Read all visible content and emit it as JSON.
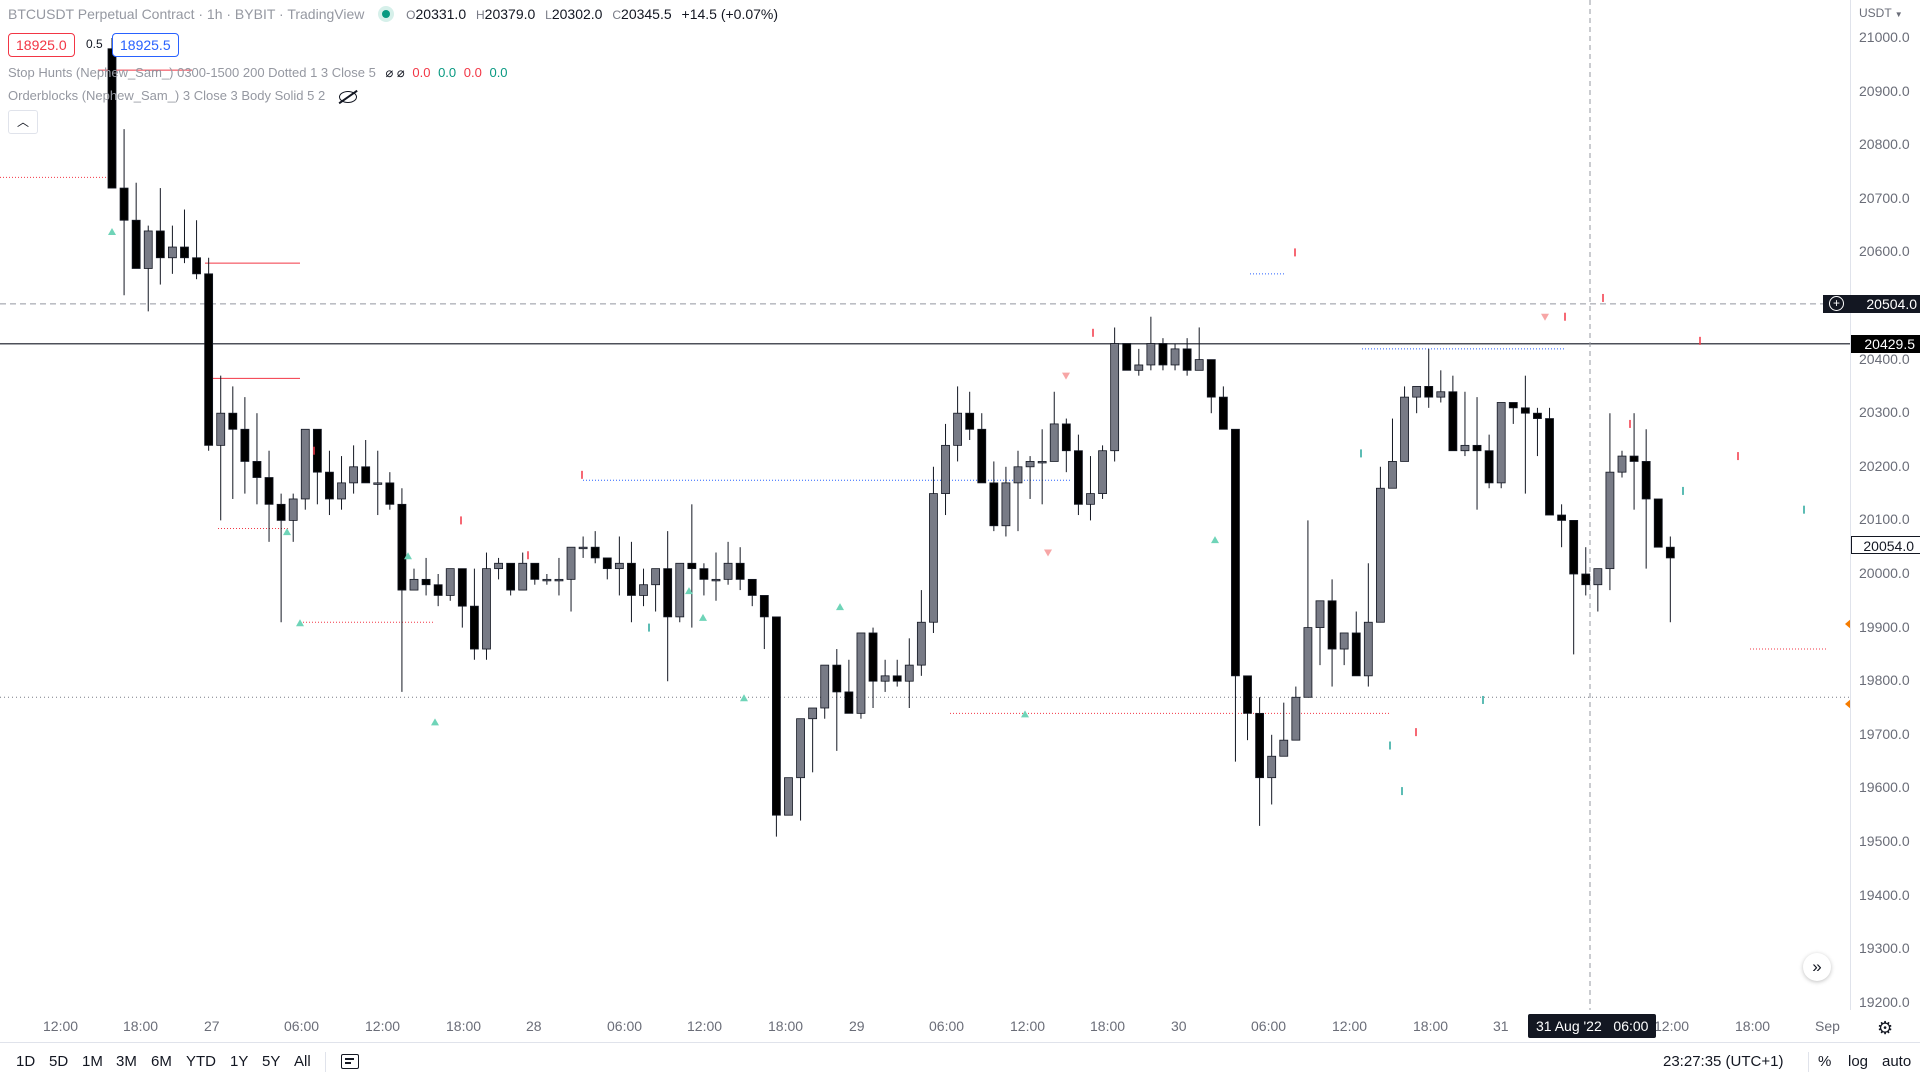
{
  "legend": {
    "symbol_title": "BTCUSDT Perpetual Contract · 1h · BYBIT · TradingView",
    "open_label": "O",
    "open": "20331.0",
    "high_label": "H",
    "high": "20379.0",
    "low_label": "L",
    "low": "20302.0",
    "close_label": "C",
    "close": "20345.5",
    "change": "+14.5 (+0.07%)",
    "sell_price": "18925.0",
    "spread": "0.5",
    "buy_price": "18925.5",
    "indicator1": "Stop Hunts (Nephew_Sam_) 0300-1500 200 Dotted 1 3 Close 5",
    "indicator1_values": [
      "0.0",
      "0.0",
      "0.0",
      "0.0"
    ],
    "indicator2": "Orderblocks (Nephew_Sam_) 3 Close 3 Body Solid 5 2",
    "collapse_icon": "chevron-up-icon",
    "hidden_icon": "eye-crossed-icon",
    "null_icon": "null-set-icon"
  },
  "price_axis": {
    "currency": "USDT",
    "ticks": [
      "21000.0",
      "20900.0",
      "20800.0",
      "20700.0",
      "20600.0",
      "20500.0",
      "20400.0",
      "20300.0",
      "20200.0",
      "20100.0",
      "20000.0",
      "19900.0",
      "19800.0",
      "19700.0",
      "19600.0",
      "19500.0",
      "19400.0",
      "19300.0",
      "19200.0"
    ],
    "alert_price": "20504.0",
    "last_price": "20429.5",
    "crosshair_price": "20054.0"
  },
  "time_axis": {
    "ticks": [
      "12:00",
      "18:00",
      "27",
      "06:00",
      "12:00",
      "18:00",
      "28",
      "06:00",
      "12:00",
      "18:00",
      "29",
      "06:00",
      "12:00",
      "18:00",
      "30",
      "06:00",
      "12:00",
      "18:00",
      "31",
      "12:00",
      "18:00",
      "Sep"
    ],
    "crosshair_date": "31 Aug '22",
    "crosshair_time": "06:00"
  },
  "bottom_bar": {
    "ranges": [
      "1D",
      "5D",
      "1M",
      "3M",
      "6M",
      "YTD",
      "1Y",
      "5Y",
      "All"
    ],
    "clock": "23:27:35 (UTC+1)",
    "percent": "%",
    "log": "log",
    "auto": "auto"
  },
  "icons": {
    "compare": "calendar-range-icon",
    "settings": "gear-icon",
    "scroll_right": "double-chevron-right-icon",
    "alert": "plus-circle-icon"
  },
  "colors": {
    "bull_candle": "#787b86",
    "bear_candle": "#000000",
    "sell_red": "#f23645",
    "buy_blue": "#2962ff",
    "teal_marker": "#26a69a",
    "ob_red_line": "#f23645",
    "alert_orange": "#f57c00"
  },
  "chart_data": {
    "type": "candlestick",
    "symbol": "BTCUSDT",
    "timeframe": "1h",
    "ylim": [
      19150,
      21050
    ],
    "candles_ohlc": [
      [
        20980,
        21000,
        20720,
        20720
      ],
      [
        20720,
        20830,
        20520,
        20660
      ],
      [
        20660,
        20730,
        20570,
        20570
      ],
      [
        20570,
        20650,
        20490,
        20640
      ],
      [
        20640,
        20720,
        20540,
        20590
      ],
      [
        20590,
        20650,
        20560,
        20610
      ],
      [
        20610,
        20680,
        20580,
        20590
      ],
      [
        20590,
        20660,
        20550,
        20560
      ],
      [
        20560,
        20590,
        20230,
        20240
      ],
      [
        20240,
        20370,
        20100,
        20300
      ],
      [
        20300,
        20350,
        20140,
        20270
      ],
      [
        20270,
        20330,
        20150,
        20210
      ],
      [
        20210,
        20300,
        20130,
        20180
      ],
      [
        20180,
        20230,
        20060,
        20130
      ],
      [
        20130,
        20150,
        19910,
        20100
      ],
      [
        20100,
        20150,
        20060,
        20140
      ],
      [
        20140,
        20270,
        20120,
        20270
      ],
      [
        20270,
        20270,
        20130,
        20190
      ],
      [
        20190,
        20230,
        20110,
        20140
      ],
      [
        20140,
        20220,
        20120,
        20170
      ],
      [
        20170,
        20240,
        20150,
        20200
      ],
      [
        20200,
        20250,
        20170,
        20170
      ],
      [
        20170,
        20230,
        20110,
        20170
      ],
      [
        20170,
        20190,
        20120,
        20130
      ],
      [
        20130,
        20160,
        19780,
        19970
      ],
      [
        19970,
        20010,
        19980,
        19990
      ],
      [
        19990,
        20030,
        19960,
        19980
      ],
      [
        19980,
        20000,
        19940,
        19960
      ],
      [
        19960,
        20010,
        19950,
        20010
      ],
      [
        20010,
        20000,
        19900,
        19940
      ],
      [
        19940,
        20010,
        19840,
        19860
      ],
      [
        19860,
        20040,
        19840,
        20010
      ],
      [
        20010,
        20030,
        19990,
        20020
      ],
      [
        20020,
        20000,
        19960,
        19970
      ],
      [
        19970,
        20040,
        19970,
        20020
      ],
      [
        20020,
        20020,
        19980,
        19990
      ],
      [
        19990,
        20000,
        19980,
        19990
      ],
      [
        19990,
        20030,
        19960,
        19990
      ],
      [
        19990,
        20050,
        19930,
        20050
      ],
      [
        20050,
        20070,
        20030,
        20050
      ],
      [
        20050,
        20080,
        20020,
        20030
      ],
      [
        20030,
        20030,
        19990,
        20010
      ],
      [
        20010,
        20070,
        19960,
        20020
      ],
      [
        20020,
        20060,
        19910,
        19960
      ],
      [
        19960,
        20010,
        19940,
        19980
      ],
      [
        19980,
        20010,
        19930,
        20010
      ],
      [
        20010,
        20080,
        19800,
        19920
      ],
      [
        19920,
        20020,
        19910,
        20020
      ],
      [
        20020,
        20130,
        19900,
        20010
      ],
      [
        20010,
        20020,
        19960,
        19990
      ],
      [
        19990,
        20040,
        19950,
        19990
      ],
      [
        19990,
        20060,
        19980,
        20020
      ],
      [
        20020,
        20050,
        19970,
        19990
      ],
      [
        19990,
        19990,
        19940,
        19960
      ],
      [
        19960,
        19950,
        19860,
        19920
      ],
      [
        19920,
        19910,
        19510,
        19550
      ],
      [
        19550,
        19620,
        19550,
        19620
      ],
      [
        19620,
        19700,
        19540,
        19730
      ],
      [
        19730,
        19750,
        19630,
        19750
      ],
      [
        19750,
        19820,
        19730,
        19830
      ],
      [
        19830,
        19860,
        19670,
        19780
      ],
      [
        19780,
        19840,
        19760,
        19740
      ],
      [
        19740,
        19790,
        19730,
        19890
      ],
      [
        19890,
        19900,
        19750,
        19800
      ],
      [
        19800,
        19840,
        19780,
        19810
      ],
      [
        19810,
        19840,
        19790,
        19800
      ],
      [
        19800,
        19880,
        19750,
        19830
      ],
      [
        19830,
        19970,
        19810,
        19910
      ],
      [
        19910,
        20200,
        19890,
        20150
      ],
      [
        20150,
        20280,
        20110,
        20240
      ],
      [
        20240,
        20350,
        20210,
        20300
      ],
      [
        20300,
        20340,
        20250,
        20270
      ],
      [
        20270,
        20300,
        20170,
        20170
      ],
      [
        20170,
        20210,
        20080,
        20090
      ],
      [
        20090,
        20200,
        20070,
        20170
      ],
      [
        20170,
        20230,
        20080,
        20200
      ],
      [
        20200,
        20220,
        20140,
        20210
      ],
      [
        20210,
        20270,
        20130,
        20210
      ],
      [
        20210,
        20340,
        20220,
        20280
      ],
      [
        20280,
        20290,
        20190,
        20230
      ],
      [
        20230,
        20260,
        20110,
        20130
      ],
      [
        20130,
        20220,
        20100,
        20150
      ],
      [
        20150,
        20240,
        20140,
        20230
      ],
      [
        20230,
        20460,
        20210,
        20430
      ],
      [
        20430,
        20430,
        20380,
        20380
      ],
      [
        20380,
        20420,
        20370,
        20390
      ],
      [
        20390,
        20480,
        20380,
        20430
      ],
      [
        20430,
        20440,
        20380,
        20390
      ],
      [
        20390,
        20430,
        20380,
        20420
      ],
      [
        20420,
        20440,
        20370,
        20380
      ],
      [
        20380,
        20460,
        20400,
        20400
      ],
      [
        20400,
        20390,
        20300,
        20330
      ],
      [
        20330,
        20350,
        20270,
        20270
      ],
      [
        20270,
        20270,
        19650,
        19810
      ],
      [
        19810,
        19780,
        19690,
        19740
      ],
      [
        19740,
        19770,
        19530,
        19620
      ],
      [
        19620,
        19700,
        19570,
        19660
      ],
      [
        19660,
        19760,
        19660,
        19690
      ],
      [
        19690,
        19790,
        19690,
        19770
      ],
      [
        19770,
        20100,
        19780,
        19900
      ],
      [
        19900,
        19920,
        19830,
        19950
      ],
      [
        19950,
        19990,
        19790,
        19860
      ],
      [
        19860,
        19880,
        19830,
        19890
      ],
      [
        19890,
        19930,
        19810,
        19810
      ],
      [
        19810,
        20020,
        19790,
        19910
      ],
      [
        19910,
        20200,
        19920,
        20160
      ],
      [
        20160,
        20290,
        20180,
        20210
      ],
      [
        20210,
        20350,
        20280,
        20330
      ],
      [
        20330,
        20350,
        20300,
        20350
      ],
      [
        20350,
        20420,
        20310,
        20330
      ],
      [
        20330,
        20380,
        20320,
        20340
      ],
      [
        20340,
        20370,
        20240,
        20230
      ],
      [
        20230,
        20340,
        20220,
        20240
      ],
      [
        20240,
        20330,
        20120,
        20230
      ],
      [
        20230,
        20260,
        20160,
        20170
      ],
      [
        20170,
        20320,
        20160,
        20320
      ],
      [
        20320,
        20320,
        20280,
        20310
      ],
      [
        20310,
        20370,
        20150,
        20300
      ],
      [
        20300,
        20310,
        20220,
        20290
      ],
      [
        20290,
        20310,
        20170,
        20110
      ],
      [
        20110,
        20130,
        20050,
        20100
      ],
      [
        20100,
        20010,
        19850,
        20000
      ],
      [
        20000,
        20050,
        19960,
        19980
      ],
      [
        19980,
        20010,
        19930,
        20010
      ],
      [
        20010,
        20300,
        19970,
        20190
      ],
      [
        20190,
        20230,
        20180,
        20220
      ],
      [
        20220,
        20300,
        20120,
        20210
      ],
      [
        20210,
        20270,
        20010,
        20140
      ],
      [
        20140,
        20100,
        20060,
        20050
      ],
      [
        20050,
        20070,
        19910,
        20030
      ]
    ],
    "price_lines": {
      "alert": 20504.0,
      "last": 20429.5,
      "crosshair": 20054.0,
      "level_dotted": 19770
    }
  }
}
